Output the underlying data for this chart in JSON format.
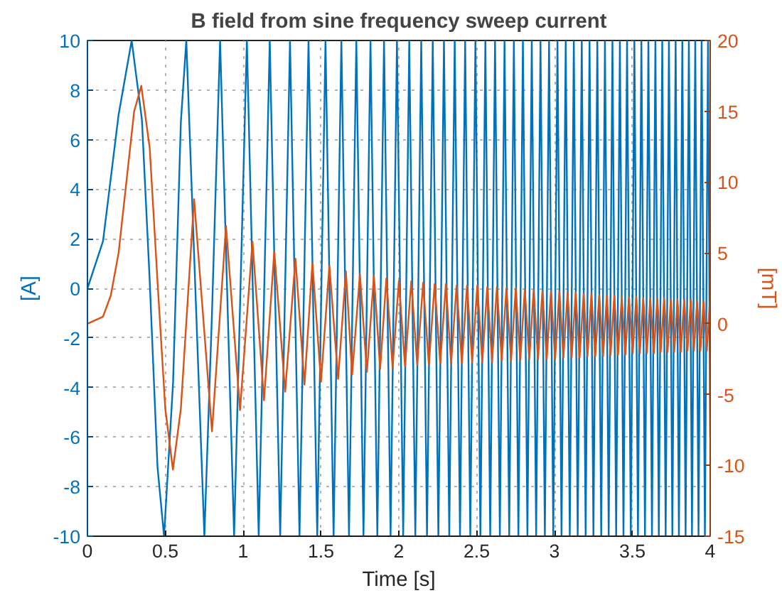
{
  "chart_data": {
    "type": "line",
    "title": "B field from sine frequency sweep current",
    "xlabel": "Time [s]",
    "ylabel": "[A]",
    "y2label": "[mT]",
    "xlim": [
      0,
      4
    ],
    "xticks": [
      0,
      0.5,
      1,
      1.5,
      2,
      2.5,
      3,
      3.5,
      4
    ],
    "ylim": [
      -10,
      10
    ],
    "yticks": [
      -10,
      -8,
      -6,
      -4,
      -2,
      0,
      2,
      4,
      6,
      8,
      10
    ],
    "y2lim": [
      -15,
      20
    ],
    "y2ticks": [
      -15,
      -10,
      -5,
      0,
      5,
      10,
      15,
      20
    ],
    "grid": true,
    "line_style": "solid",
    "series": [
      {
        "color": "#0072bd",
        "x": [
          0,
          0.1,
          0.2,
          0.284,
          0.35,
          0.4,
          0.45,
          0.492,
          0.55,
          0.6,
          0.635,
          0.7,
          0.751,
          0.8,
          0.852,
          0.9,
          0.942,
          1.024,
          1.1,
          1.171,
          1.238,
          1.301,
          1.362,
          1.42,
          1.476,
          1.529,
          1.581,
          1.631,
          1.68,
          1.727,
          1.773,
          1.818,
          1.862,
          1.905,
          1.947,
          1.988,
          2.028,
          2.067,
          2.106,
          2.144,
          2.181,
          2.218,
          2.254,
          2.29,
          2.324,
          2.359,
          2.393,
          2.426,
          2.459,
          2.492,
          2.524,
          2.556,
          2.587,
          2.618,
          2.649,
          2.679,
          2.709,
          2.739,
          2.768,
          2.797,
          2.826,
          2.854,
          2.882,
          2.91,
          2.938,
          2.965,
          2.992,
          3.019,
          3.045,
          3.072,
          3.098,
          3.124,
          3.149,
          3.175,
          3.2,
          3.225,
          3.25,
          3.275,
          3.3,
          3.324,
          3.348,
          3.372,
          3.396,
          3.42,
          3.443,
          3.466,
          3.49,
          3.513,
          3.536,
          3.558,
          3.581,
          3.603,
          3.626,
          3.648,
          3.67,
          3.692,
          3.714,
          3.735,
          3.757,
          3.778,
          3.799,
          3.821,
          3.842,
          3.863,
          3.883,
          3.904,
          3.925,
          3.945,
          3.966,
          3.986,
          4
        ],
        "values": [
          0,
          1.9,
          7,
          10,
          6.8,
          0.3,
          -7.2,
          -10,
          -3.8,
          6.7,
          10,
          -1.2,
          -10,
          -1,
          10,
          -0.7,
          -10,
          10,
          -10,
          10,
          -10,
          10,
          -10,
          10,
          -10,
          10,
          -10,
          10,
          -10,
          10,
          -10,
          10,
          -10,
          10,
          -10,
          10,
          -10,
          10,
          -10,
          10,
          -10,
          10,
          -10,
          10,
          -10,
          10,
          -10,
          10,
          -10,
          10,
          -10,
          10,
          -10,
          10,
          -10,
          10,
          -10,
          10,
          -10,
          10,
          -10,
          10,
          -10,
          10,
          -10,
          10,
          -10,
          10,
          -10,
          10,
          -10,
          10,
          -10,
          10,
          -10,
          10,
          -10,
          10,
          -10,
          10,
          -10,
          10,
          -10,
          10,
          -10,
          10,
          -10,
          10,
          -10,
          10,
          -10,
          10,
          -10,
          10,
          -10,
          10,
          -10,
          10,
          -10,
          10,
          -10,
          10,
          -10,
          10,
          -10,
          10,
          -10,
          10,
          -10,
          10,
          -6
        ]
      },
      {
        "color": "#d95319",
        "axis": "y2",
        "x": [
          0,
          0.1,
          0.15,
          0.2,
          0.25,
          0.3,
          0.346,
          0.4,
          0.45,
          0.5,
          0.549,
          0.6,
          0.685,
          0.8,
          0.89,
          0.98,
          1.06,
          1.134,
          1.2,
          1.27,
          1.336,
          1.394,
          1.445,
          1.5,
          1.554,
          1.61,
          1.66,
          1.7,
          1.75,
          1.795,
          1.84,
          1.88,
          1.92,
          1.96,
          2,
          2.04,
          2.08,
          2.118,
          2.156,
          2.193,
          2.23,
          2.266,
          2.302,
          2.336,
          2.371,
          2.405,
          2.438,
          2.471,
          2.504,
          2.536,
          2.568,
          2.599,
          2.63,
          2.661,
          2.691,
          2.721,
          2.751,
          2.78,
          2.809,
          2.838,
          2.866,
          2.894,
          2.922,
          2.95,
          2.977,
          3.004,
          3.031,
          3.057,
          3.084,
          3.11,
          3.136,
          3.161,
          3.187,
          3.212,
          3.237,
          3.262,
          3.287,
          3.312,
          3.336,
          3.36,
          3.384,
          3.408,
          3.432,
          3.455,
          3.478,
          3.502,
          3.525,
          3.548,
          3.57,
          3.593,
          3.615,
          3.638,
          3.66,
          3.682,
          3.704,
          3.726,
          3.747,
          3.769,
          3.79,
          3.811,
          3.833,
          3.854,
          3.875,
          3.895,
          3.916,
          3.937,
          3.957,
          3.978,
          3.998
        ],
        "values": [
          0,
          0.5,
          2,
          5,
          10,
          15,
          16.8,
          12.4,
          3,
          -6,
          -10.3,
          -6,
          8.8,
          -7.6,
          6.9,
          -6.1,
          5.8,
          -5.4,
          5.1,
          -4.8,
          4.6,
          -4.3,
          4.3,
          -4.1,
          4.1,
          -3.9,
          3.7,
          -3.6,
          3.5,
          -3.4,
          3.4,
          -3.2,
          3.2,
          -3.1,
          3,
          -3,
          3,
          -2.9,
          2.9,
          -2.9,
          2.8,
          -2.8,
          2.8,
          -2.8,
          2.7,
          -2.8,
          2.7,
          -2.7,
          2.7,
          -2.7,
          2.6,
          -2.7,
          2.6,
          -2.6,
          2.5,
          -2.6,
          2.5,
          -2.6,
          2.4,
          -2.5,
          2.4,
          -2.5,
          2.3,
          -2.5,
          2.3,
          -2.5,
          2.3,
          -2.4,
          2.2,
          -2.4,
          2.2,
          -2.4,
          2.1,
          -2.3,
          2.1,
          -2.3,
          2,
          -2.3,
          2,
          -2.2,
          2,
          -2.2,
          1.9,
          -2.2,
          1.9,
          -2.1,
          1.9,
          -2.1,
          1.8,
          -2.1,
          1.8,
          -2.1,
          1.8,
          -2,
          1.8,
          -2,
          1.7,
          -2,
          1.7,
          -2,
          1.7,
          -1.9,
          1.7,
          -1.9,
          1.6,
          -1.9,
          1.6,
          -1.9,
          1.6
        ]
      }
    ]
  }
}
